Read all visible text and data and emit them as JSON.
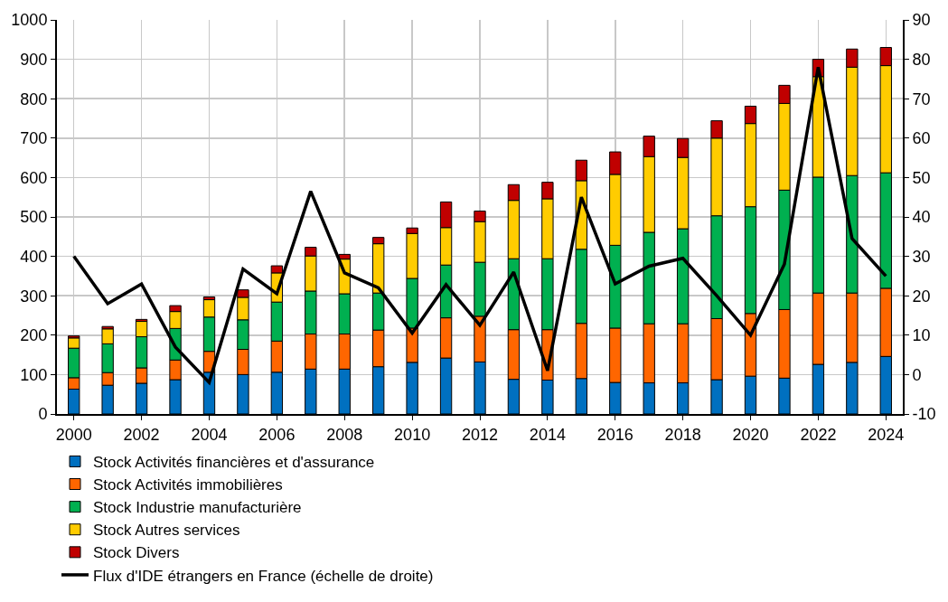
{
  "chart_data": {
    "type": "bar",
    "stacked": true,
    "x": [
      2000,
      2001,
      2002,
      2003,
      2004,
      2005,
      2006,
      2007,
      2008,
      2009,
      2010,
      2011,
      2012,
      2013,
      2014,
      2015,
      2016,
      2017,
      2018,
      2019,
      2020,
      2021,
      2022,
      2023,
      2024
    ],
    "xlim": [
      1999.5,
      2024.5
    ],
    "xticks": [
      2000,
      2002,
      2004,
      2006,
      2008,
      2010,
      2012,
      2014,
      2016,
      2018,
      2020,
      2022,
      2024
    ],
    "ylim": [
      0,
      1000
    ],
    "yticks": [
      0,
      100,
      200,
      300,
      400,
      500,
      600,
      700,
      800,
      900,
      1000
    ],
    "y2lim": [
      -10,
      90
    ],
    "y2ticks": [
      -10,
      0,
      10,
      20,
      30,
      40,
      50,
      60,
      70,
      80,
      90
    ],
    "grid": true,
    "legend": "bottom",
    "series": [
      {
        "name": "Stock Activités financières et d'assurance",
        "color": "#0070c0",
        "values": [
          63,
          73,
          78,
          87,
          106,
          100,
          106,
          114,
          114,
          120,
          131,
          142,
          132,
          88,
          86,
          90,
          80,
          79,
          79,
          87,
          96,
          91,
          126,
          131,
          146
        ]
      },
      {
        "name": "Stock Activités immobilières",
        "color": "#ff6600",
        "values": [
          29,
          32,
          39,
          50,
          53,
          64,
          79,
          89,
          89,
          93,
          87,
          102,
          116,
          126,
          128,
          140,
          138,
          150,
          150,
          155,
          159,
          174,
          181,
          176,
          173
        ]
      },
      {
        "name": "Stock Industrie manufacturière",
        "color": "#00b050",
        "values": [
          75,
          73,
          79,
          80,
          87,
          75,
          99,
          109,
          102,
          94,
          126,
          134,
          137,
          180,
          180,
          188,
          210,
          232,
          241,
          261,
          271,
          303,
          294,
          298,
          293
        ]
      },
      {
        "name": "Stock Autres services",
        "color": "#ffcc00",
        "values": [
          26,
          38,
          39,
          43,
          44,
          57,
          74,
          89,
          88,
          125,
          114,
          95,
          103,
          148,
          152,
          174,
          180,
          192,
          181,
          197,
          211,
          220,
          255,
          275,
          272
        ]
      },
      {
        "name": "Stock Divers",
        "color": "#c00000",
        "values": [
          5,
          6,
          5,
          15,
          7,
          19,
          18,
          22,
          12,
          16,
          14,
          65,
          27,
          40,
          42,
          52,
          57,
          52,
          48,
          44,
          44,
          46,
          44,
          46,
          46
        ]
      },
      {
        "name": "Flux d'IDE étrangers en France (échelle de droite)",
        "type": "line",
        "axis": "y2",
        "color": "#000000",
        "line_style": "solid",
        "marker": "none",
        "values": [
          30,
          18,
          23,
          7,
          -2,
          26.8,
          20.5,
          46.5,
          25.8,
          22,
          10.5,
          22.8,
          12.5,
          26,
          1,
          45,
          23,
          27.5,
          29.5,
          20,
          10,
          28,
          78,
          34.5,
          25
        ]
      }
    ]
  }
}
